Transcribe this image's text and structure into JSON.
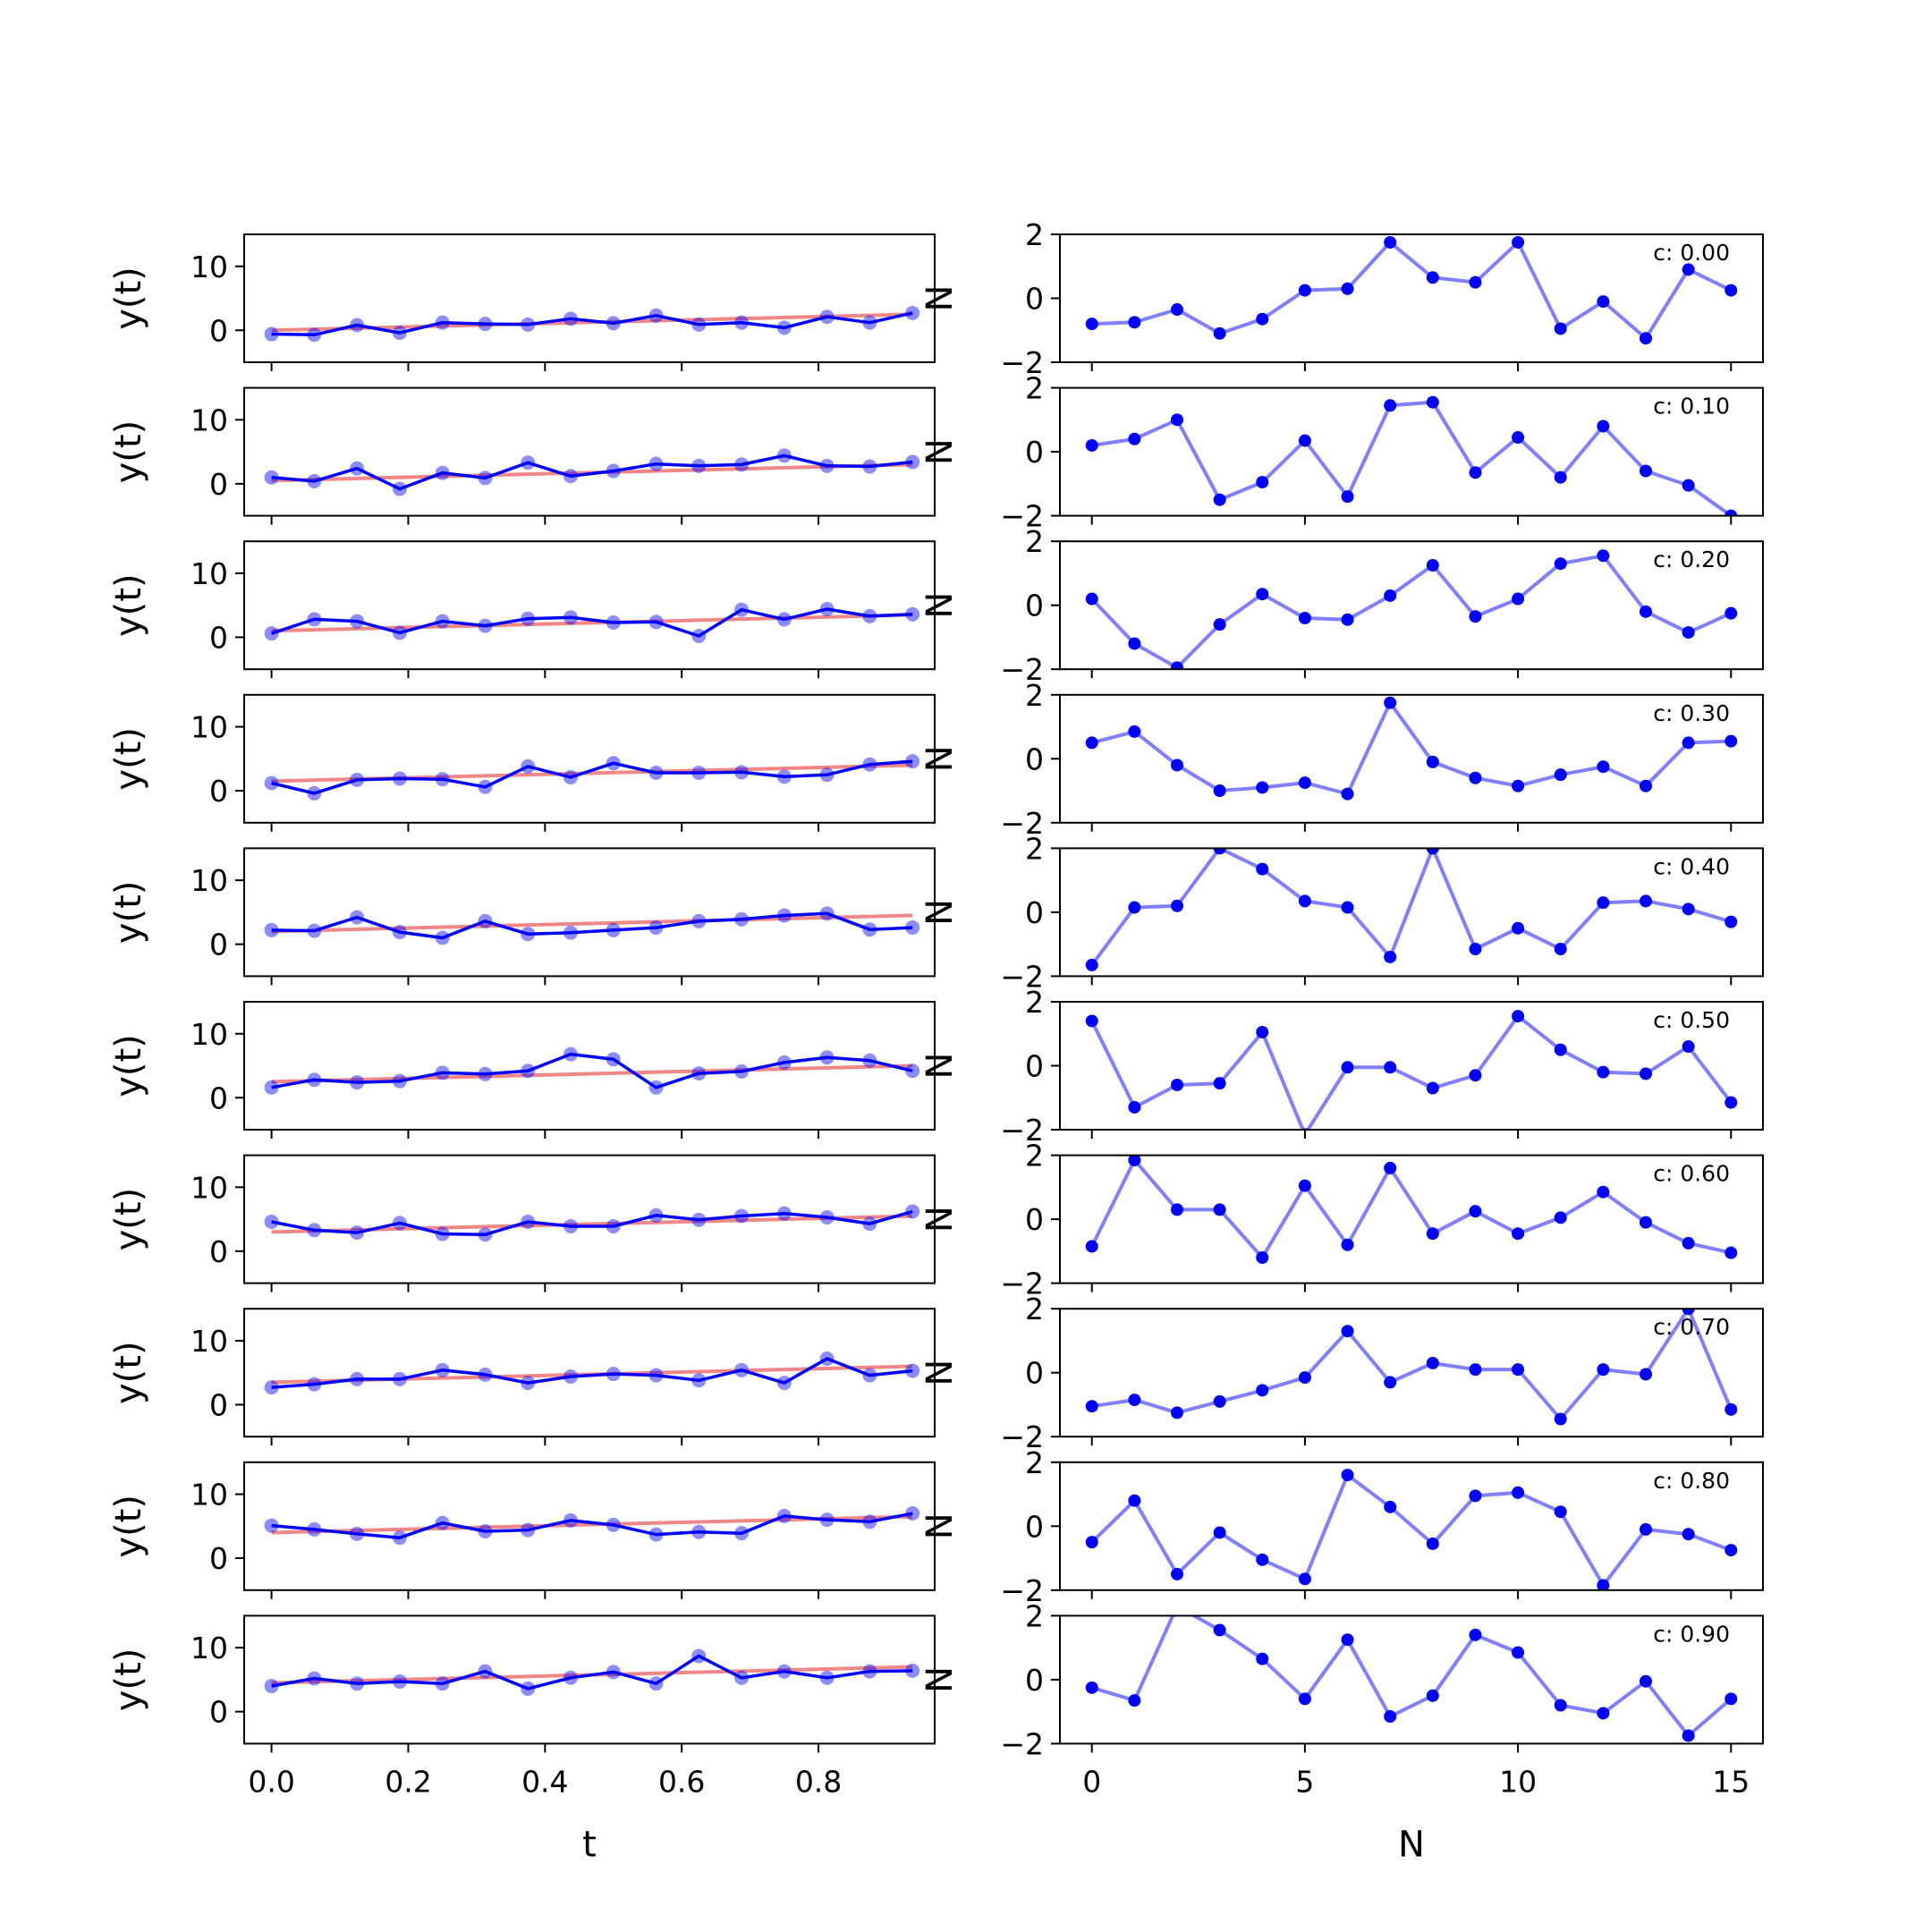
{
  "chart_data": {
    "type": "line",
    "colors": {
      "data": "#0000ff",
      "fit": "#f08080",
      "noise": "#0000ff"
    },
    "left": {
      "xlabel": "t",
      "ylabel": "y(t)",
      "xlim": [
        -0.04,
        0.97
      ],
      "ylim": [
        -5,
        15
      ],
      "xticks": [
        "0.0",
        "0.2",
        "0.4",
        "0.6",
        "0.8"
      ],
      "xtick_values": [
        0,
        0.2,
        0.4,
        0.6,
        0.8
      ],
      "yticks": [
        "0",
        "10"
      ],
      "ytick_values": [
        0,
        10
      ],
      "x": [
        0,
        0.0625,
        0.125,
        0.1875,
        0.25,
        0.3125,
        0.375,
        0.4375,
        0.5,
        0.5625,
        0.625,
        0.6875,
        0.75,
        0.8125,
        0.875,
        0.9375
      ]
    },
    "right": {
      "xlabel": "N",
      "ylabel": "N",
      "xlim": [
        -0.75,
        15.75
      ],
      "ylim": [
        -2,
        2
      ],
      "xticks": [
        "0",
        "5",
        "10",
        "15"
      ],
      "xtick_values": [
        0,
        5,
        10,
        15
      ],
      "yticks": [
        "−2",
        "0",
        "2"
      ],
      "ytick_values": [
        -2,
        0,
        2
      ]
    },
    "rows": [
      {
        "label": "c: 0.00",
        "y": [
          -0.6,
          -0.7,
          0.8,
          -0.4,
          1.2,
          1.0,
          0.9,
          1.8,
          1.1,
          2.3,
          0.9,
          1.2,
          0.4,
          2.1,
          1.2,
          2.7
        ],
        "fit": [
          0.0,
          2.5
        ],
        "noise": [
          -0.8,
          -0.75,
          -0.35,
          -1.1,
          -0.65,
          0.25,
          0.3,
          1.75,
          0.65,
          0.5,
          1.75,
          -0.95,
          -0.1,
          -1.25,
          0.9,
          0.25
        ]
      },
      {
        "label": "c: 0.10",
        "y": [
          1.0,
          0.4,
          2.4,
          -0.8,
          1.7,
          0.9,
          3.3,
          1.2,
          2.0,
          3.1,
          2.8,
          3.0,
          4.4,
          2.8,
          2.7,
          3.4
        ],
        "fit": [
          0.5,
          3.0
        ],
        "noise": [
          0.2,
          0.4,
          1.0,
          -1.5,
          -0.95,
          0.35,
          -1.4,
          1.45,
          1.55,
          -0.65,
          0.45,
          -0.8,
          0.8,
          -0.6,
          -1.05,
          -2.0
        ]
      },
      {
        "label": "c: 0.20",
        "y": [
          0.6,
          2.8,
          2.5,
          0.7,
          2.5,
          1.8,
          2.9,
          3.1,
          2.3,
          2.4,
          0.2,
          4.3,
          2.8,
          4.4,
          3.3,
          3.6
        ],
        "fit": [
          1.0,
          3.5
        ],
        "noise": [
          0.2,
          -1.2,
          -1.95,
          -0.6,
          0.35,
          -0.4,
          -0.45,
          0.3,
          1.25,
          -0.35,
          0.2,
          1.3,
          1.55,
          -0.2,
          -0.85,
          -0.25
        ]
      },
      {
        "label": "c: 0.30",
        "y": [
          1.2,
          -0.4,
          1.7,
          1.9,
          1.8,
          0.6,
          3.8,
          2.1,
          4.3,
          2.8,
          2.8,
          2.9,
          2.2,
          2.5,
          4.1,
          4.6
        ],
        "fit": [
          1.5,
          4.0
        ],
        "noise": [
          0.5,
          0.85,
          -0.2,
          -1.0,
          -0.9,
          -0.75,
          -1.1,
          1.75,
          -0.1,
          -0.6,
          -0.85,
          -0.5,
          -0.25,
          -0.85,
          0.5,
          0.55
        ]
      },
      {
        "label": "c: 0.40",
        "y": [
          2.2,
          2.1,
          4.2,
          1.9,
          1.0,
          3.6,
          1.6,
          1.8,
          2.2,
          2.6,
          3.6,
          3.9,
          4.5,
          4.8,
          2.3,
          2.6
        ],
        "fit": [
          2.0,
          4.5
        ],
        "noise": [
          -1.65,
          0.15,
          0.2,
          2.0,
          1.35,
          0.35,
          0.15,
          -1.4,
          2.0,
          -1.15,
          -0.5,
          -1.15,
          0.3,
          0.35,
          0.1,
          -0.3
        ]
      },
      {
        "label": "c: 0.50",
        "y": [
          1.6,
          2.8,
          2.4,
          2.6,
          3.9,
          3.7,
          4.2,
          6.8,
          6.0,
          1.6,
          3.8,
          4.1,
          5.5,
          6.3,
          5.8,
          4.2
        ],
        "fit": [
          2.5,
          5.0
        ],
        "noise": [
          1.4,
          -1.3,
          -0.6,
          -0.55,
          1.05,
          -2.15,
          -0.05,
          -0.05,
          -0.7,
          -0.3,
          1.55,
          0.5,
          -0.2,
          -0.25,
          0.6,
          -1.15
        ]
      },
      {
        "label": "c: 0.60",
        "y": [
          4.6,
          3.3,
          2.9,
          4.4,
          2.7,
          2.6,
          4.6,
          3.9,
          3.9,
          5.6,
          4.9,
          5.5,
          5.9,
          5.3,
          4.3,
          6.2
        ],
        "fit": [
          3.0,
          5.5
        ],
        "noise": [
          -0.85,
          1.85,
          0.3,
          0.3,
          -1.2,
          1.05,
          -0.8,
          1.6,
          -0.45,
          0.25,
          -0.45,
          0.05,
          0.85,
          -0.1,
          -0.75,
          -1.05
        ]
      },
      {
        "label": "c: 0.70",
        "y": [
          2.7,
          3.2,
          4.0,
          4.0,
          5.4,
          4.7,
          3.4,
          4.4,
          4.8,
          4.6,
          3.8,
          5.4,
          3.4,
          7.2,
          4.6,
          5.3
        ],
        "fit": [
          3.5,
          6.0
        ],
        "noise": [
          -1.05,
          -0.85,
          -1.25,
          -0.9,
          -0.55,
          -0.15,
          1.3,
          -0.3,
          0.3,
          0.1,
          0.1,
          -1.45,
          0.1,
          -0.05,
          2.0,
          -1.15
        ]
      },
      {
        "label": "c: 0.80",
        "y": [
          5.1,
          4.5,
          3.8,
          3.2,
          5.5,
          4.2,
          4.4,
          5.9,
          5.2,
          3.7,
          4.1,
          3.9,
          6.6,
          6.0,
          5.7,
          7.0
        ],
        "fit": [
          4.0,
          6.5
        ],
        "noise": [
          -0.5,
          0.8,
          -1.5,
          -0.2,
          -1.05,
          -1.65,
          1.6,
          0.6,
          -0.55,
          0.95,
          1.05,
          0.45,
          -1.85,
          -0.1,
          -0.25,
          -0.75
        ]
      },
      {
        "label": "c: 0.90",
        "y": [
          4.0,
          5.2,
          4.4,
          4.7,
          4.4,
          6.3,
          3.6,
          5.3,
          6.2,
          4.4,
          8.7,
          5.3,
          6.3,
          5.3,
          6.3,
          6.4
        ],
        "fit": [
          4.5,
          7.0
        ],
        "noise": [
          -0.25,
          -0.65,
          2.3,
          1.55,
          0.65,
          -0.6,
          1.25,
          -1.15,
          -0.5,
          1.4,
          0.85,
          -0.8,
          -1.05,
          -0.05,
          -1.75,
          -0.6
        ]
      }
    ]
  }
}
